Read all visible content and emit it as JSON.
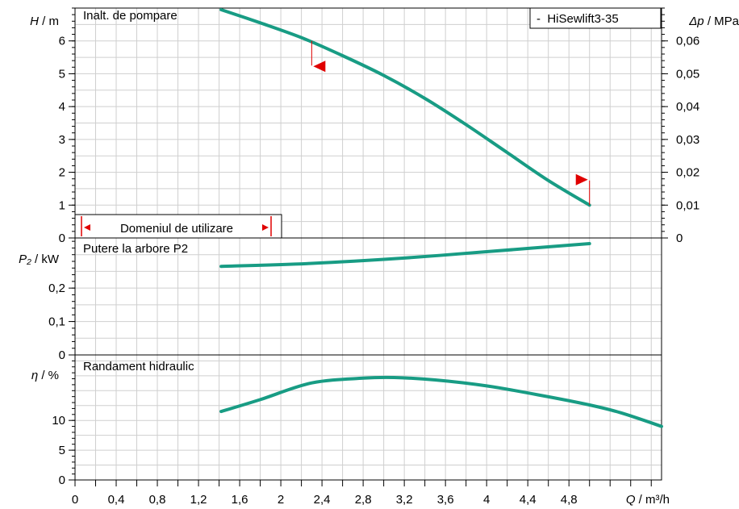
{
  "chart_data": [
    {
      "type": "line",
      "title": "Inalt. de pompare",
      "ylabel_sym": "H",
      "ylabel_unit": "/ m",
      "y2label_sym": "Δp",
      "y2label_unit": "/ MPa",
      "ylim": [
        0,
        7
      ],
      "yticks": [
        "0",
        "1",
        "2",
        "3",
        "4",
        "5",
        "6"
      ],
      "y2ticks": [
        "0",
        "0,01",
        "0,02",
        "0,03",
        "0,04",
        "0,05",
        "0,06"
      ],
      "legend": "-  HiSewlift3-35",
      "range_label": "Domeniul de utilizare",
      "series": [
        {
          "name": "HiSewlift3-35",
          "color": "#189c84",
          "x": [
            1.42,
            1.8,
            2.2,
            2.6,
            3.0,
            3.4,
            3.8,
            4.2,
            4.6,
            5.0
          ],
          "y": [
            6.95,
            6.55,
            6.1,
            5.55,
            4.95,
            4.25,
            3.45,
            2.6,
            1.75,
            1.0
          ]
        }
      ],
      "op_markers": [
        {
          "x": 2.3,
          "y": 6.0,
          "y_to": 5.25
        },
        {
          "x": 5.0,
          "y": 1.0,
          "y_to": 1.75
        }
      ]
    },
    {
      "type": "line",
      "title": "Putere la arbore P2",
      "ylabel_sym": "P₂",
      "ylabel_unit": "/ kW",
      "ylim": [
        0,
        0.35
      ],
      "yticks": [
        "0",
        "0,1",
        "0,2"
      ],
      "series": [
        {
          "name": "HiSewlift3-35",
          "color": "#189c84",
          "x": [
            1.42,
            2.3,
            3.2,
            4.0,
            5.0
          ],
          "y": [
            0.265,
            0.274,
            0.29,
            0.309,
            0.333
          ]
        }
      ]
    },
    {
      "type": "line",
      "title": "Randament hidraulic",
      "ylabel_sym": "η",
      "ylabel_unit": "/ %",
      "ylim": [
        0,
        21
      ],
      "yticks": [
        "0",
        "5",
        "10"
      ],
      "xlabel_sym": "Q",
      "xlabel_unit": "/ m³/h",
      "xlim": [
        0,
        5.7
      ],
      "xticks": [
        "0",
        "0,4",
        "0,8",
        "1,2",
        "1,6",
        "2",
        "2,4",
        "2,8",
        "3,2",
        "3,6",
        "4",
        "4,4",
        "4,8"
      ],
      "series": [
        {
          "name": "HiSewlift3-35",
          "color": "#189c84",
          "x": [
            1.42,
            1.8,
            2.3,
            2.8,
            3.1,
            3.5,
            4.0,
            4.5,
            5.0,
            5.3,
            5.7
          ],
          "y": [
            11.5,
            13.5,
            16.3,
            17.1,
            17.2,
            16.8,
            15.8,
            14.3,
            12.6,
            11.3,
            9.0
          ]
        }
      ]
    }
  ]
}
